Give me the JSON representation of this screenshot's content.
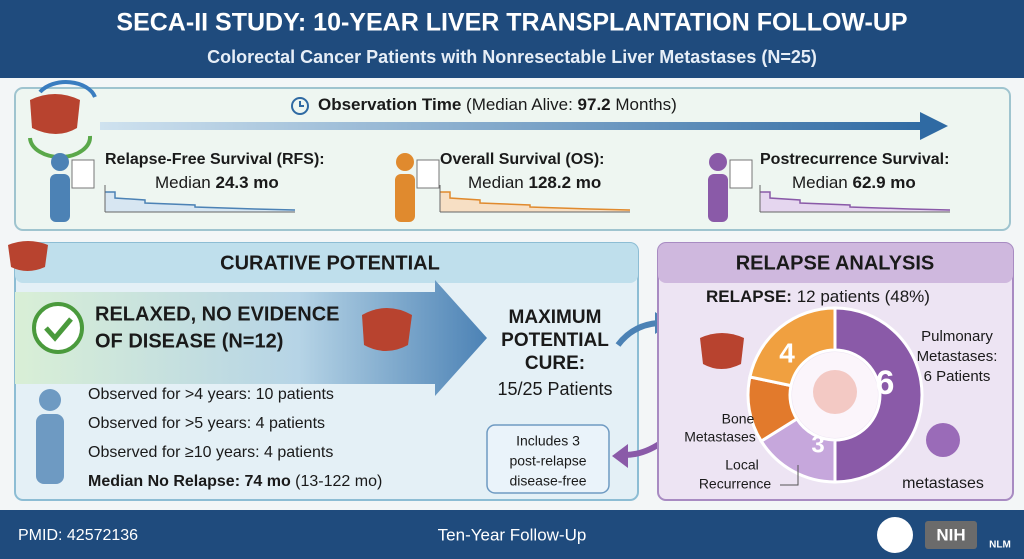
{
  "header": {
    "title": "SECA-II STUDY: 10-YEAR LIVER TRANSPLANTATION FOLLOW-UP",
    "subtitle": "Colorectal Cancer Patients with Nonresectable Liver Metastases (N=25)"
  },
  "observation": {
    "label": "Observation Time",
    "prefix": "(Median Alive:",
    "value": "97.2",
    "suffix": "Months)"
  },
  "survival": [
    {
      "title": "Relapse-Free Survival (RFS):",
      "median": "Median",
      "value": "24.3 mo"
    },
    {
      "title": "Overall Survival (OS):",
      "median": "Median",
      "value": "128.2 mo"
    },
    {
      "title": "Postrecurrence Survival:",
      "median": "Median",
      "value": "62.9 mo"
    }
  ],
  "curative": {
    "title": "CURATIVE POTENTIAL",
    "banner": [
      "RELAXED, NO EVIDENCE",
      "OF DISEASE (N=12)"
    ],
    "facts": [
      "Observed for >4 years: 10 patients",
      "Observed for >5 years: 4 patients",
      "Observed for ≥10 years: 4 patients"
    ],
    "median": {
      "label": "Median No Relapse: 74 mo",
      "range": "(13-122 mo)"
    },
    "max_cure": [
      "MAXIMUM",
      "POTENTIAL",
      "CURE:",
      "15/25 Patients"
    ],
    "note": [
      "Includes 3",
      "post-relapse",
      "disease-free"
    ]
  },
  "relapse": {
    "title": "RELAPSE ANALYSIS",
    "label": "RELAPSE:",
    "value": "12 patients (48%)",
    "donut_numbers": [
      "6",
      "4",
      "3"
    ],
    "pulmonary": [
      "Pulmonary",
      "Metastases:",
      "6 Patients"
    ],
    "bone": [
      "Bone",
      "Metastases"
    ],
    "local": [
      "Local",
      "Recurrence"
    ],
    "other": "metastases"
  },
  "footer": {
    "pmid": "PMID: 42572136",
    "center": "Ten-Year Follow-Up",
    "logo1": "NIH",
    "logo2": "NLM"
  }
}
